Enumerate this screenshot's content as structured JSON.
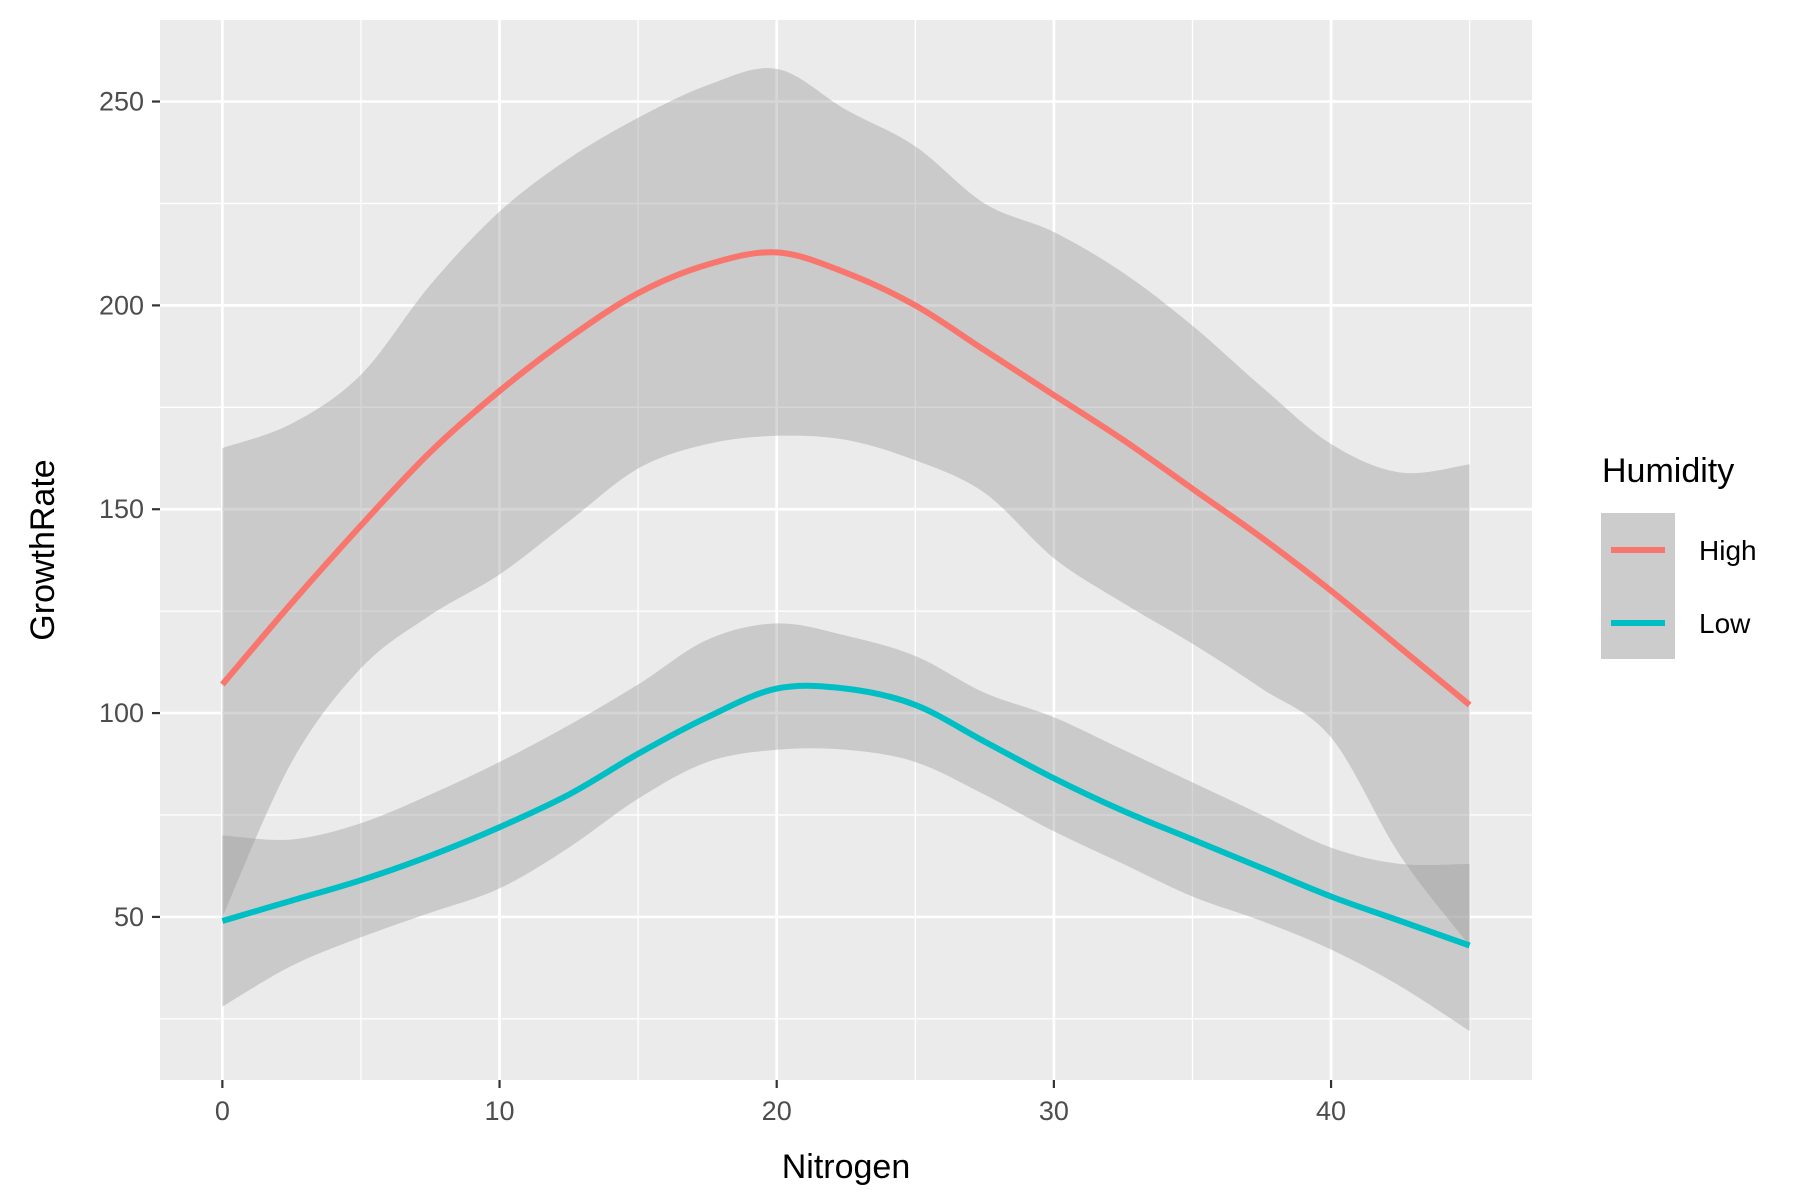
{
  "chart_data": {
    "type": "line",
    "xlabel": "Nitrogen",
    "ylabel": "GrowthRate",
    "xlim": [
      -2.25,
      47.25
    ],
    "ylim": [
      10,
      270
    ],
    "x_ticks": [
      0,
      10,
      20,
      30,
      40
    ],
    "y_ticks": [
      50,
      100,
      150,
      200,
      250
    ],
    "grid": true,
    "legend": {
      "title": "Humidity",
      "position": "right"
    },
    "x": [
      0,
      2.5,
      5,
      7.5,
      10,
      12.5,
      15,
      17.5,
      20,
      22.5,
      25,
      27.5,
      30,
      32.5,
      35,
      37.5,
      40,
      42.5,
      45
    ],
    "series": [
      {
        "name": "High",
        "color": "#f8766d",
        "values": [
          107,
          127,
          146,
          164,
          179,
          192,
          203,
          210,
          213,
          208,
          200,
          189,
          178,
          167,
          155,
          143,
          130,
          116,
          102
        ],
        "ci_lower": [
          50,
          88,
          111,
          124,
          134,
          147,
          160,
          166,
          168,
          167,
          162,
          154,
          138,
          127,
          117,
          106,
          94,
          65,
          43
        ],
        "ci_upper": [
          165,
          171,
          183,
          205,
          223,
          236,
          246,
          254,
          258,
          248,
          239,
          225,
          218,
          208,
          195,
          180,
          166,
          159,
          161
        ]
      },
      {
        "name": "Low",
        "color": "#00bfc4",
        "values": [
          49,
          54,
          59,
          65,
          72,
          80,
          90,
          99,
          106,
          106,
          102,
          93,
          84,
          76,
          69,
          62,
          55,
          49,
          43
        ],
        "ci_lower": [
          28,
          38,
          45,
          51,
          57,
          67,
          79,
          88,
          91,
          91,
          88,
          80,
          71,
          63,
          55,
          49,
          42,
          33,
          22
        ],
        "ci_upper": [
          70,
          69,
          73,
          80,
          88,
          97,
          107,
          118,
          122,
          119,
          114,
          105,
          99,
          91,
          83,
          75,
          67,
          63,
          63
        ]
      }
    ]
  }
}
